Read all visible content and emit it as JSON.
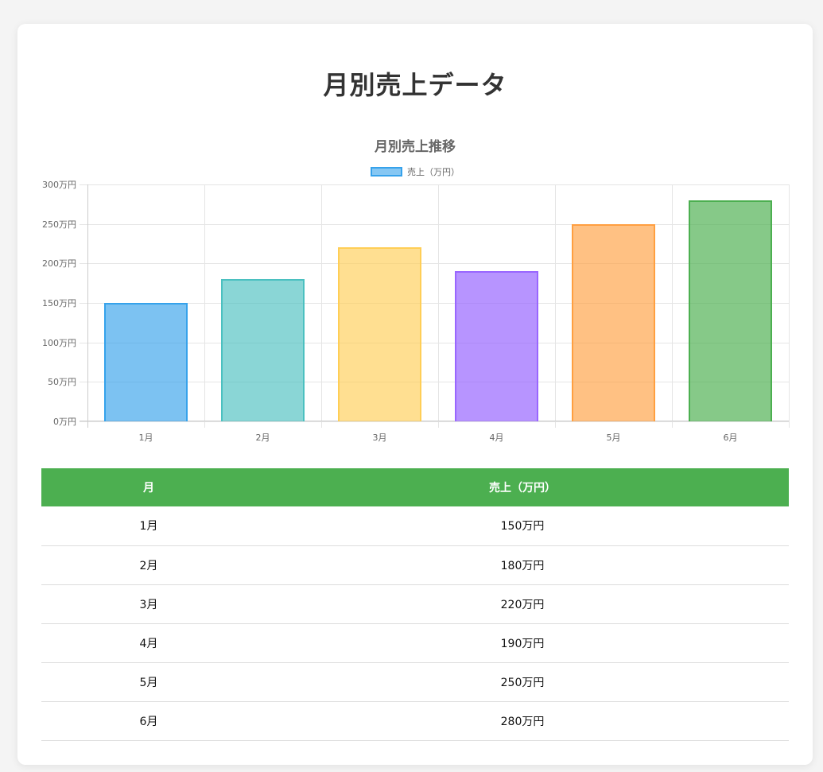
{
  "page": {
    "title": "月別売上データ"
  },
  "chart_data": {
    "type": "bar",
    "title": "月別売上推移",
    "categories": [
      "1月",
      "2月",
      "3月",
      "4月",
      "5月",
      "6月"
    ],
    "series": [
      {
        "name": "売上（万円）",
        "values": [
          150,
          180,
          220,
          190,
          250,
          280
        ]
      }
    ],
    "xlabel": "",
    "ylabel": "",
    "ylim": [
      0,
      300
    ],
    "yticks": [
      "0万円",
      "50万円",
      "100万円",
      "150万円",
      "200万円",
      "250万円",
      "300万円"
    ],
    "grid": true,
    "legend_position": "top",
    "bar_colors": [
      {
        "fill": "rgba(54,162,235,0.65)",
        "border": "#36a2eb"
      },
      {
        "fill": "rgba(75,192,192,0.65)",
        "border": "#4bc0c0"
      },
      {
        "fill": "rgba(255,206,86,0.65)",
        "border": "#ffce56"
      },
      {
        "fill": "rgba(153,102,255,0.7)",
        "border": "#9966ff"
      },
      {
        "fill": "rgba(255,159,64,0.65)",
        "border": "#ff9f40"
      },
      {
        "fill": "rgba(76,175,80,0.68)",
        "border": "#4caf50"
      }
    ]
  },
  "legend": {
    "label": "売上（万円）"
  },
  "table": {
    "headers": [
      "月",
      "売上（万円）"
    ],
    "rows": [
      {
        "month": "1月",
        "sales": "150万円"
      },
      {
        "month": "2月",
        "sales": "180万円"
      },
      {
        "month": "3月",
        "sales": "220万円"
      },
      {
        "month": "4月",
        "sales": "190万円"
      },
      {
        "month": "5月",
        "sales": "250万円"
      },
      {
        "month": "6月",
        "sales": "280万円"
      }
    ]
  },
  "colors": {
    "table_header": "#4caf50",
    "background": "#f4f4f4"
  }
}
